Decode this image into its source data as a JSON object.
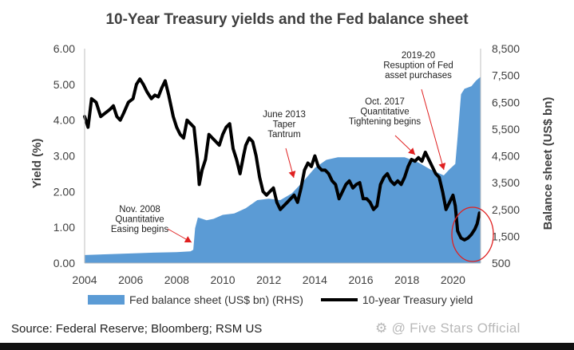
{
  "chart_data": {
    "type": "area+line",
    "title": "10-Year Treasury yields and the Fed balance sheet",
    "xlabel": "",
    "ylabel_left": "Yield (%)",
    "ylabel_right": "Balance sheet (US$ bn)",
    "xlim": [
      2004,
      2021.2
    ],
    "ylim_left": [
      0,
      6
    ],
    "ylim_right": [
      500,
      8500
    ],
    "x_ticks": [
      "2004",
      "2006",
      "2008",
      "2010",
      "2012",
      "2014",
      "2016",
      "2018",
      "2020"
    ],
    "y_left_ticks": [
      "0.00",
      "1.00",
      "2.00",
      "3.00",
      "4.00",
      "5.00",
      "6.00"
    ],
    "y_right_ticks": [
      "500",
      "1,500",
      "2,500",
      "3,500",
      "4,500",
      "5,500",
      "6,500",
      "7,500",
      "8,500"
    ],
    "series": [
      {
        "name": "Fed balance sheet (US$ bn) (RHS)",
        "type": "area",
        "axis": "right",
        "color": "#5b9bd5",
        "points": [
          [
            2004,
            800
          ],
          [
            2005,
            830
          ],
          [
            2006,
            860
          ],
          [
            2007,
            890
          ],
          [
            2008,
            910
          ],
          [
            2008.6,
            940
          ],
          [
            2008.72,
            1000
          ],
          [
            2008.8,
            1800
          ],
          [
            2008.92,
            2200
          ],
          [
            2009.3,
            2100
          ],
          [
            2009.6,
            2150
          ],
          [
            2010,
            2300
          ],
          [
            2010.5,
            2350
          ],
          [
            2011,
            2550
          ],
          [
            2011.5,
            2850
          ],
          [
            2012,
            2900
          ],
          [
            2012.5,
            2850
          ],
          [
            2013,
            3100
          ],
          [
            2013.5,
            3550
          ],
          [
            2014,
            4050
          ],
          [
            2014.5,
            4350
          ],
          [
            2015,
            4450
          ],
          [
            2016,
            4450
          ],
          [
            2017,
            4450
          ],
          [
            2017.9,
            4450
          ],
          [
            2018.5,
            4250
          ],
          [
            2019,
            4000
          ],
          [
            2019.6,
            3770
          ],
          [
            2019.85,
            4000
          ],
          [
            2020.1,
            4200
          ],
          [
            2020.2,
            5200
          ],
          [
            2020.35,
            6800
          ],
          [
            2020.5,
            7000
          ],
          [
            2020.8,
            7100
          ],
          [
            2021,
            7300
          ],
          [
            2021.2,
            7450
          ]
        ]
      },
      {
        "name": "10-year Treasury yield",
        "type": "line",
        "axis": "left",
        "color": "#000000",
        "points": [
          [
            2004,
            4.1
          ],
          [
            2004.15,
            3.8
          ],
          [
            2004.3,
            4.6
          ],
          [
            2004.5,
            4.5
          ],
          [
            2004.7,
            4.1
          ],
          [
            2004.9,
            4.2
          ],
          [
            2005.1,
            4.3
          ],
          [
            2005.25,
            4.4
          ],
          [
            2005.4,
            4.1
          ],
          [
            2005.55,
            4.0
          ],
          [
            2005.7,
            4.2
          ],
          [
            2005.9,
            4.5
          ],
          [
            2006.1,
            4.6
          ],
          [
            2006.25,
            5.0
          ],
          [
            2006.4,
            5.15
          ],
          [
            2006.55,
            5.0
          ],
          [
            2006.7,
            4.8
          ],
          [
            2006.9,
            4.6
          ],
          [
            2007.05,
            4.7
          ],
          [
            2007.2,
            4.65
          ],
          [
            2007.35,
            4.9
          ],
          [
            2007.5,
            5.1
          ],
          [
            2007.65,
            4.7
          ],
          [
            2007.85,
            4.1
          ],
          [
            2008,
            3.8
          ],
          [
            2008.15,
            3.6
          ],
          [
            2008.3,
            3.5
          ],
          [
            2008.45,
            4.0
          ],
          [
            2008.6,
            3.9
          ],
          [
            2008.75,
            3.8
          ],
          [
            2008.9,
            2.9
          ],
          [
            2008.98,
            2.2
          ],
          [
            2009.1,
            2.6
          ],
          [
            2009.25,
            2.9
          ],
          [
            2009.4,
            3.6
          ],
          [
            2009.55,
            3.5
          ],
          [
            2009.7,
            3.4
          ],
          [
            2009.85,
            3.3
          ],
          [
            2010,
            3.6
          ],
          [
            2010.15,
            3.8
          ],
          [
            2010.3,
            3.9
          ],
          [
            2010.45,
            3.2
          ],
          [
            2010.6,
            2.9
          ],
          [
            2010.75,
            2.5
          ],
          [
            2010.9,
            3.0
          ],
          [
            2011,
            3.3
          ],
          [
            2011.15,
            3.5
          ],
          [
            2011.3,
            3.4
          ],
          [
            2011.45,
            3.0
          ],
          [
            2011.6,
            2.4
          ],
          [
            2011.75,
            2.0
          ],
          [
            2011.9,
            1.9
          ],
          [
            2012.05,
            2.0
          ],
          [
            2012.2,
            2.1
          ],
          [
            2012.35,
            1.7
          ],
          [
            2012.5,
            1.5
          ],
          [
            2012.65,
            1.6
          ],
          [
            2012.8,
            1.7
          ],
          [
            2012.95,
            1.8
          ],
          [
            2013.1,
            1.9
          ],
          [
            2013.25,
            1.7
          ],
          [
            2013.4,
            2.1
          ],
          [
            2013.55,
            2.6
          ],
          [
            2013.7,
            2.8
          ],
          [
            2013.85,
            2.7
          ],
          [
            2014,
            3.0
          ],
          [
            2014.15,
            2.7
          ],
          [
            2014.3,
            2.6
          ],
          [
            2014.45,
            2.6
          ],
          [
            2014.6,
            2.5
          ],
          [
            2014.75,
            2.3
          ],
          [
            2014.9,
            2.2
          ],
          [
            2015.05,
            1.8
          ],
          [
            2015.2,
            2.0
          ],
          [
            2015.35,
            2.2
          ],
          [
            2015.5,
            2.3
          ],
          [
            2015.65,
            2.1
          ],
          [
            2015.8,
            2.2
          ],
          [
            2015.95,
            2.25
          ],
          [
            2016.1,
            1.8
          ],
          [
            2016.25,
            1.8
          ],
          [
            2016.4,
            1.7
          ],
          [
            2016.55,
            1.5
          ],
          [
            2016.7,
            1.6
          ],
          [
            2016.85,
            2.2
          ],
          [
            2017,
            2.4
          ],
          [
            2017.15,
            2.5
          ],
          [
            2017.3,
            2.3
          ],
          [
            2017.45,
            2.2
          ],
          [
            2017.6,
            2.3
          ],
          [
            2017.75,
            2.2
          ],
          [
            2017.9,
            2.4
          ],
          [
            2018.05,
            2.7
          ],
          [
            2018.2,
            2.9
          ],
          [
            2018.35,
            2.85
          ],
          [
            2018.5,
            2.95
          ],
          [
            2018.65,
            2.85
          ],
          [
            2018.8,
            3.1
          ],
          [
            2018.95,
            2.9
          ],
          [
            2019.1,
            2.7
          ],
          [
            2019.25,
            2.5
          ],
          [
            2019.4,
            2.4
          ],
          [
            2019.55,
            2.0
          ],
          [
            2019.7,
            1.5
          ],
          [
            2019.85,
            1.7
          ],
          [
            2020,
            1.9
          ],
          [
            2020.1,
            1.6
          ],
          [
            2020.2,
            0.9
          ],
          [
            2020.35,
            0.7
          ],
          [
            2020.5,
            0.65
          ],
          [
            2020.65,
            0.7
          ],
          [
            2020.8,
            0.8
          ],
          [
            2020.95,
            0.95
          ],
          [
            2021.05,
            1.1
          ],
          [
            2021.15,
            1.4
          ]
        ]
      }
    ],
    "annotations": [
      {
        "lines": [
          "Nov. 2008",
          "Quantitative",
          "Easing begins"
        ],
        "arrow_to": [
          2008.9,
          0.55
        ]
      },
      {
        "lines": [
          "June 2013",
          "Taper",
          "Tantrum"
        ],
        "arrow_to": [
          2013.0,
          2.4
        ]
      },
      {
        "lines": [
          "Oct. 2017",
          "Quantitative",
          "Tightening begins"
        ],
        "arrow_to": [
          2018.2,
          3.05
        ]
      },
      {
        "lines": [
          "2019-20",
          "Resuption of Fed",
          "asset purchases"
        ],
        "arrow_to": [
          2019.6,
          2.62
        ]
      }
    ],
    "highlight": {
      "shape": "ellipse",
      "color": "#e02020",
      "center": [
        2020.6,
        0.95
      ]
    },
    "legend_position": "bottom"
  },
  "legend": {
    "bar_label": "Fed balance sheet (US$ bn) (RHS)",
    "line_label": "10-year Treasury yield"
  },
  "source": "Source: Federal Reserve; Bloomberg; RSM US",
  "watermark": "Five Stars Official"
}
